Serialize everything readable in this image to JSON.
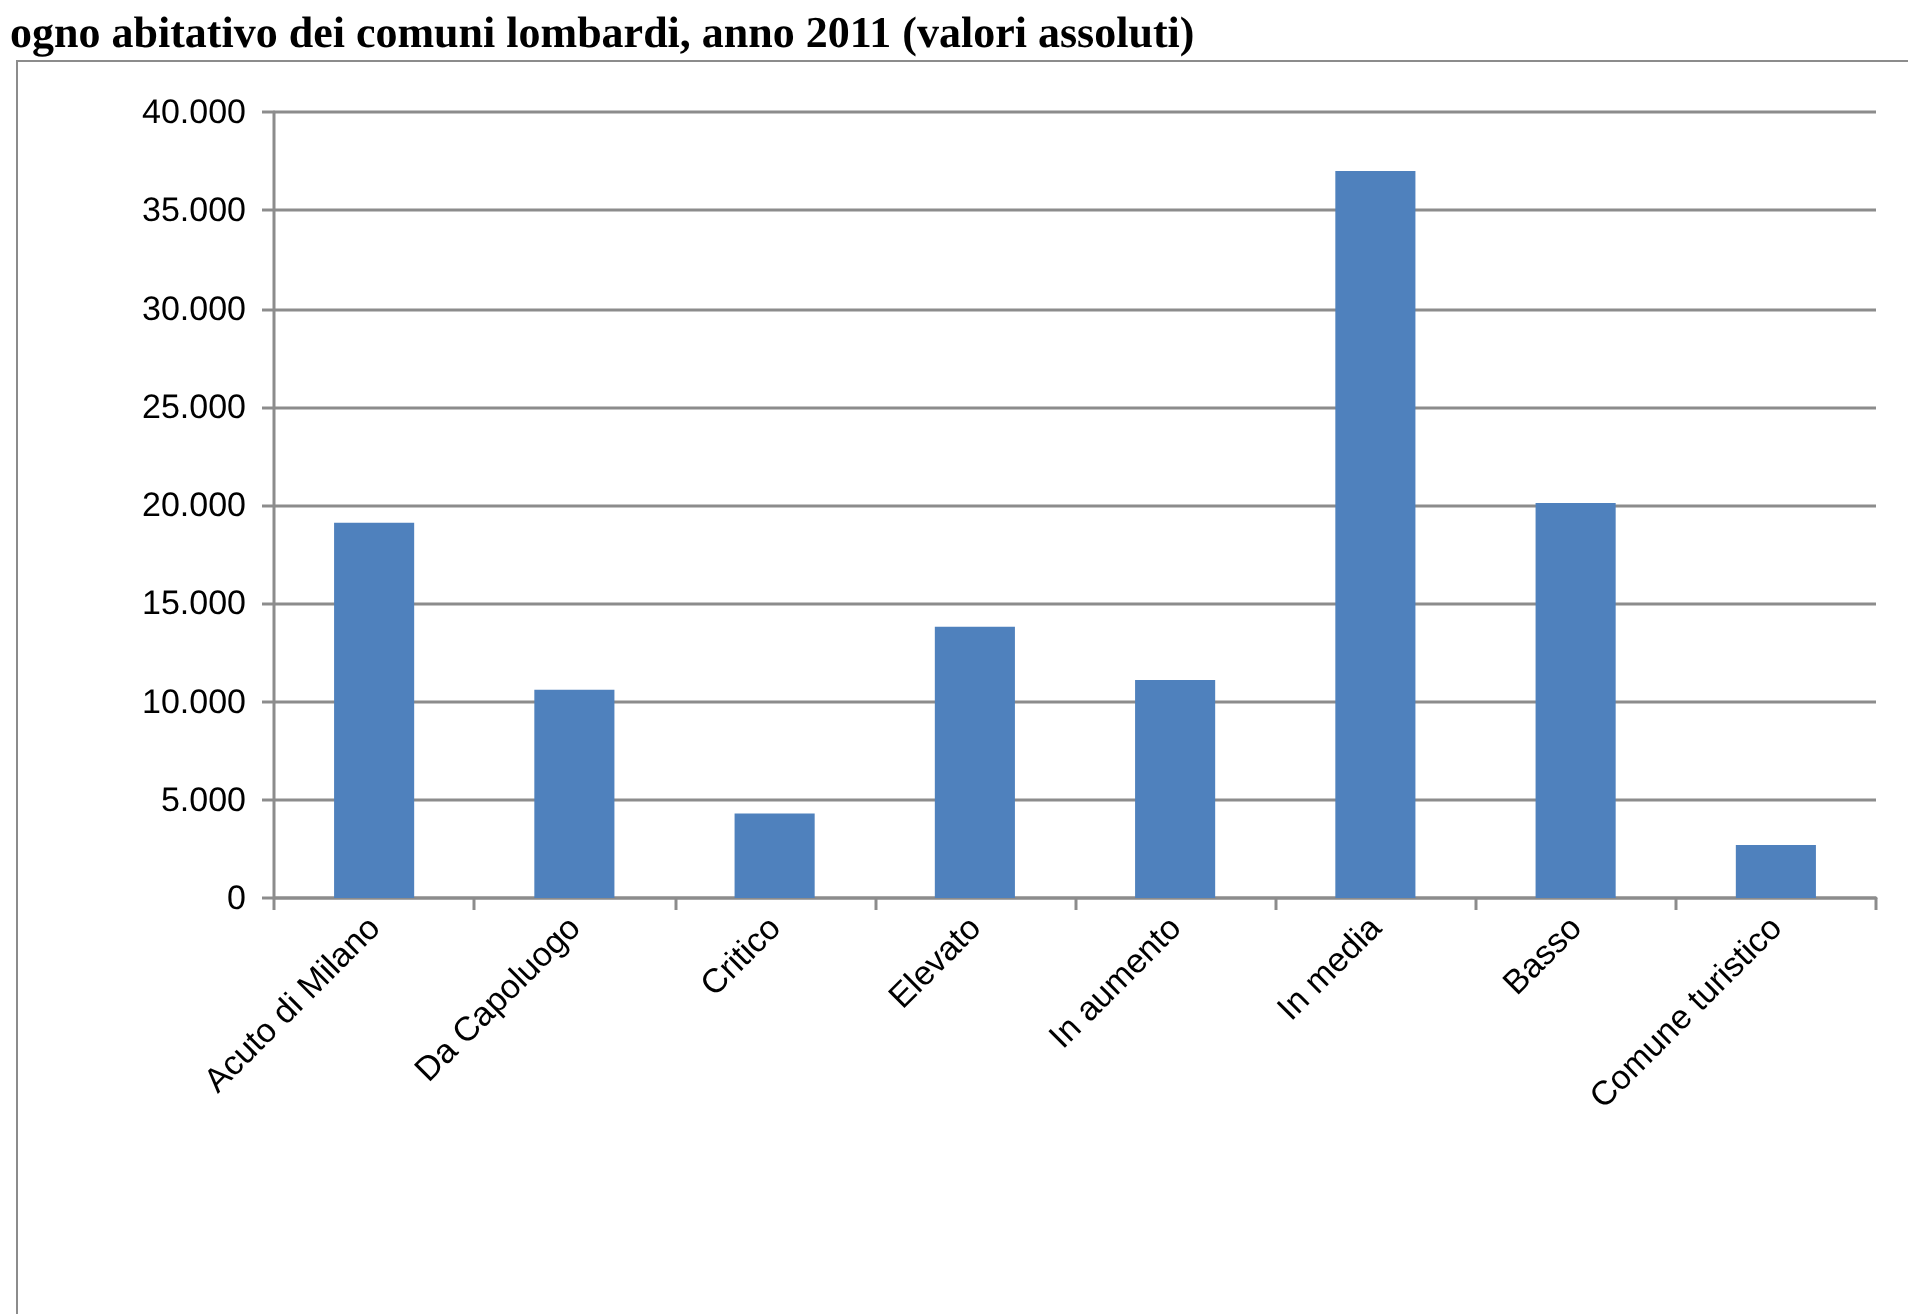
{
  "chart_data": {
    "type": "bar",
    "title": "ogno abitativo dei comuni lombardi, anno 2011 (valori assoluti)",
    "categories": [
      "Acuto di Milano",
      "Da Capoluogo",
      "Critico",
      "Elevato",
      "In aumento",
      "In media",
      "Basso",
      "Comune turistico"
    ],
    "values": [
      19100,
      10600,
      4300,
      13800,
      11100,
      37000,
      20100,
      2700
    ],
    "color": "#4f81bd",
    "ylim": [
      0,
      40000
    ],
    "yticks": [
      0,
      {
        "value": 5000,
        "label": "5.000"
      },
      {
        "value": 10000,
        "label": "10.000"
      },
      {
        "value": 15000,
        "label": "15.000"
      },
      {
        "value": 20000,
        "label": "20.000"
      },
      {
        "value": 25000,
        "label": "25.000"
      },
      {
        "value": 30000,
        "label": "30.000"
      },
      {
        "value": 35000,
        "label": "35.000"
      },
      {
        "value": 40000,
        "label": "40.000"
      }
    ],
    "grid": "y"
  }
}
